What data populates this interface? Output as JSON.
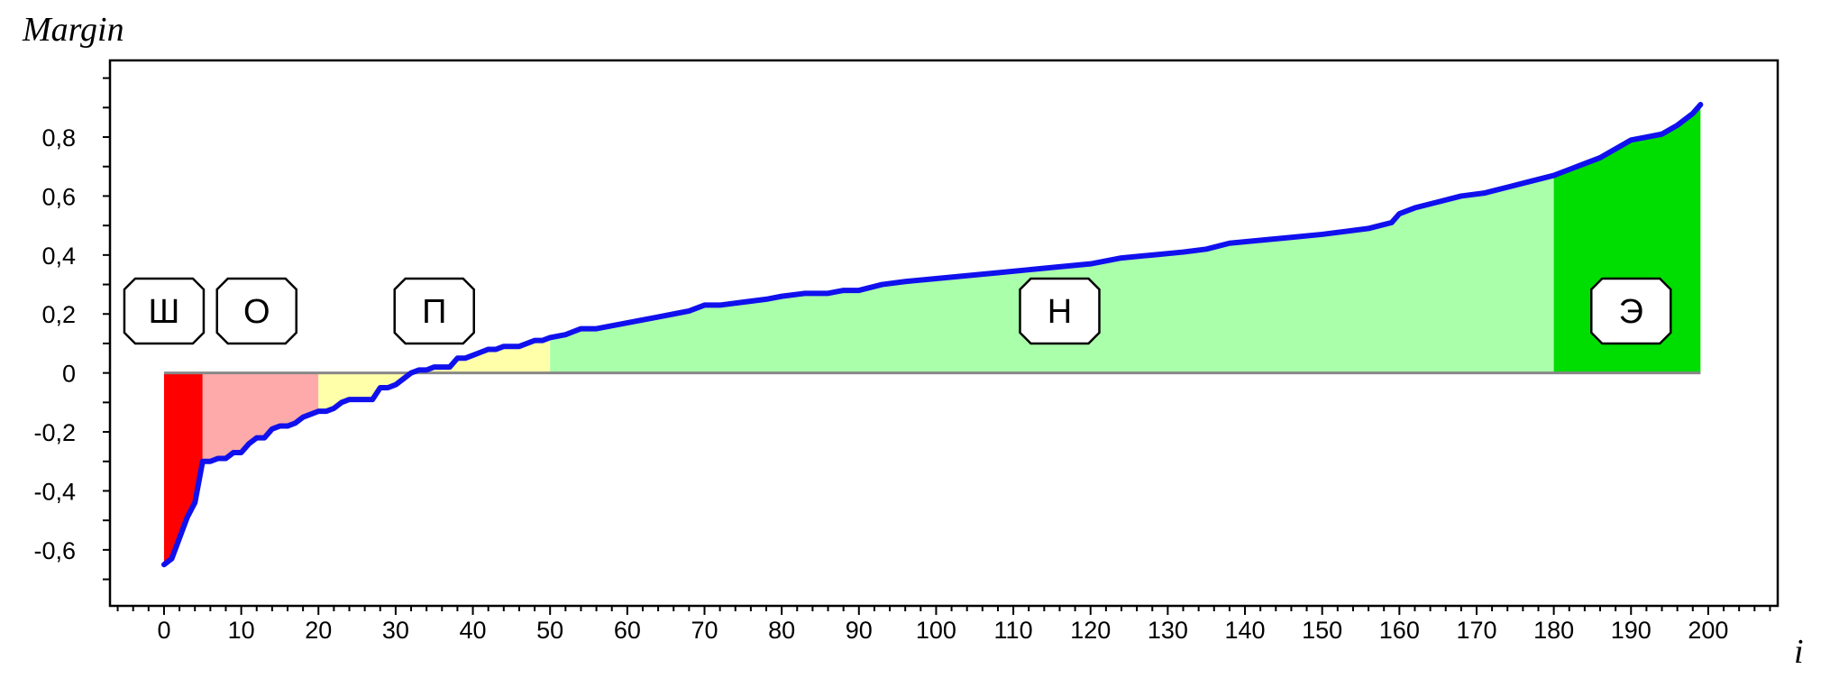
{
  "chart_data": {
    "type": "area",
    "ylabel": "Margin",
    "xlabel": "i",
    "xlim": [
      -7,
      209
    ],
    "ylim": [
      -0.79,
      1.06
    ],
    "x_ticks": [
      0,
      10,
      20,
      30,
      40,
      50,
      60,
      70,
      80,
      90,
      100,
      110,
      120,
      130,
      140,
      150,
      160,
      170,
      180,
      190,
      200
    ],
    "y_ticks": [
      -0.6,
      -0.4,
      -0.2,
      0,
      0.2,
      0.4,
      0.6,
      0.8
    ],
    "y_tick_labels": [
      "-0,6",
      "-0,4",
      "-0,2",
      "0",
      "0,2",
      "0,4",
      "0,6",
      "0,8"
    ],
    "grid": false,
    "line_color": "#1010ee",
    "zones": [
      {
        "label": "Ш",
        "from": 0,
        "to": 5,
        "color": "#ff0000",
        "label_x": 0,
        "label_y": 0.21
      },
      {
        "label": "О",
        "from": 5,
        "to": 20,
        "color": "#ffaaaa",
        "label_x": 12,
        "label_y": 0.21
      },
      {
        "label": "П",
        "from": 20,
        "to": 50,
        "color": "#ffffaa",
        "label_x": 35,
        "label_y": 0.21
      },
      {
        "label": "Н",
        "from": 50,
        "to": 180,
        "color": "#aaffaa",
        "label_x": 116,
        "label_y": 0.21
      },
      {
        "label": "Э",
        "from": 180,
        "to": 199,
        "color": "#00dd00",
        "label_x": 190,
        "label_y": 0.21
      }
    ],
    "points": [
      [
        0,
        -0.65
      ],
      [
        1,
        -0.63
      ],
      [
        2,
        -0.56
      ],
      [
        3,
        -0.49
      ],
      [
        4,
        -0.44
      ],
      [
        5,
        -0.3
      ],
      [
        6,
        -0.3
      ],
      [
        7,
        -0.29
      ],
      [
        8,
        -0.29
      ],
      [
        9,
        -0.27
      ],
      [
        10,
        -0.27
      ],
      [
        11,
        -0.24
      ],
      [
        12,
        -0.22
      ],
      [
        13,
        -0.22
      ],
      [
        14,
        -0.19
      ],
      [
        15,
        -0.18
      ],
      [
        16,
        -0.18
      ],
      [
        17,
        -0.17
      ],
      [
        18,
        -0.15
      ],
      [
        19,
        -0.14
      ],
      [
        20,
        -0.13
      ],
      [
        21,
        -0.13
      ],
      [
        22,
        -0.12
      ],
      [
        23,
        -0.1
      ],
      [
        24,
        -0.09
      ],
      [
        25,
        -0.09
      ],
      [
        26,
        -0.09
      ],
      [
        27,
        -0.09
      ],
      [
        28,
        -0.05
      ],
      [
        29,
        -0.05
      ],
      [
        30,
        -0.04
      ],
      [
        31,
        -0.02
      ],
      [
        32,
        0.0
      ],
      [
        33,
        0.01
      ],
      [
        34,
        0.01
      ],
      [
        35,
        0.02
      ],
      [
        36,
        0.02
      ],
      [
        37,
        0.02
      ],
      [
        38,
        0.05
      ],
      [
        39,
        0.05
      ],
      [
        40,
        0.06
      ],
      [
        41,
        0.07
      ],
      [
        42,
        0.08
      ],
      [
        43,
        0.08
      ],
      [
        44,
        0.09
      ],
      [
        45,
        0.09
      ],
      [
        46,
        0.09
      ],
      [
        47,
        0.1
      ],
      [
        48,
        0.11
      ],
      [
        49,
        0.11
      ],
      [
        50,
        0.12
      ],
      [
        52,
        0.13
      ],
      [
        54,
        0.15
      ],
      [
        56,
        0.15
      ],
      [
        58,
        0.16
      ],
      [
        60,
        0.17
      ],
      [
        62,
        0.18
      ],
      [
        64,
        0.19
      ],
      [
        66,
        0.2
      ],
      [
        68,
        0.21
      ],
      [
        70,
        0.23
      ],
      [
        72,
        0.23
      ],
      [
        75,
        0.24
      ],
      [
        78,
        0.25
      ],
      [
        80,
        0.26
      ],
      [
        83,
        0.27
      ],
      [
        86,
        0.27
      ],
      [
        88,
        0.28
      ],
      [
        90,
        0.28
      ],
      [
        93,
        0.3
      ],
      [
        96,
        0.31
      ],
      [
        100,
        0.32
      ],
      [
        104,
        0.33
      ],
      [
        108,
        0.34
      ],
      [
        112,
        0.35
      ],
      [
        116,
        0.36
      ],
      [
        120,
        0.37
      ],
      [
        124,
        0.39
      ],
      [
        128,
        0.4
      ],
      [
        132,
        0.41
      ],
      [
        135,
        0.42
      ],
      [
        138,
        0.44
      ],
      [
        142,
        0.45
      ],
      [
        146,
        0.46
      ],
      [
        150,
        0.47
      ],
      [
        153,
        0.48
      ],
      [
        156,
        0.49
      ],
      [
        159,
        0.51
      ],
      [
        160,
        0.54
      ],
      [
        162,
        0.56
      ],
      [
        165,
        0.58
      ],
      [
        168,
        0.6
      ],
      [
        171,
        0.61
      ],
      [
        174,
        0.63
      ],
      [
        177,
        0.65
      ],
      [
        180,
        0.67
      ],
      [
        182,
        0.69
      ],
      [
        184,
        0.71
      ],
      [
        186,
        0.73
      ],
      [
        188,
        0.76
      ],
      [
        190,
        0.79
      ],
      [
        192,
        0.8
      ],
      [
        194,
        0.81
      ],
      [
        196,
        0.84
      ],
      [
        198,
        0.88
      ],
      [
        199,
        0.91
      ]
    ]
  }
}
